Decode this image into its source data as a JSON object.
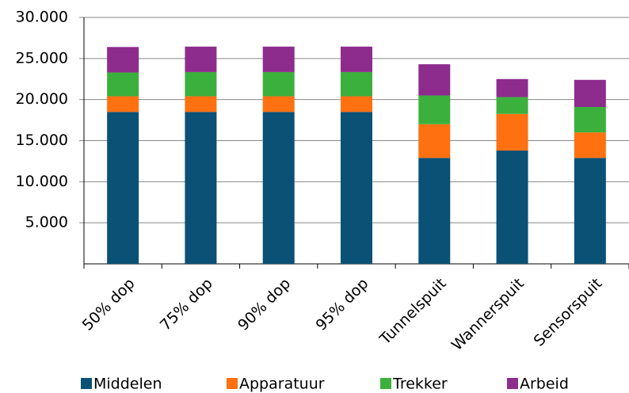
{
  "chart_data": {
    "type": "stacked_bar",
    "categories": [
      "50% dop",
      "75% dop",
      "90% dop",
      "95% dop",
      "Tunnelspuit",
      "Wannerspuit",
      "Sensorspuit"
    ],
    "series": [
      {
        "name": "Middelen",
        "color": "#0b5175",
        "values": [
          18500,
          18500,
          18500,
          18500,
          12900,
          13800,
          12900
        ]
      },
      {
        "name": "Apparatuur",
        "color": "#ff7010",
        "values": [
          1900,
          1900,
          1900,
          1900,
          4100,
          4450,
          3100
        ]
      },
      {
        "name": "Trekker",
        "color": "#3cb03c",
        "values": [
          2900,
          2950,
          2950,
          2950,
          3500,
          2050,
          3100
        ]
      },
      {
        "name": "Arbeid",
        "color": "#8e2c8e",
        "values": [
          3100,
          3100,
          3100,
          3100,
          3800,
          2200,
          3300
        ]
      }
    ],
    "ylim": [
      0,
      30000
    ],
    "yticks": [
      {
        "value": 5000,
        "label": "5.000"
      },
      {
        "value": 10000,
        "label": "10.000"
      },
      {
        "value": 15000,
        "label": "15.000"
      },
      {
        "value": 20000,
        "label": "20.000"
      },
      {
        "value": 25000,
        "label": "25.000"
      },
      {
        "value": 30000,
        "label": "30.000"
      }
    ],
    "grid": true,
    "legend": "bottom"
  }
}
